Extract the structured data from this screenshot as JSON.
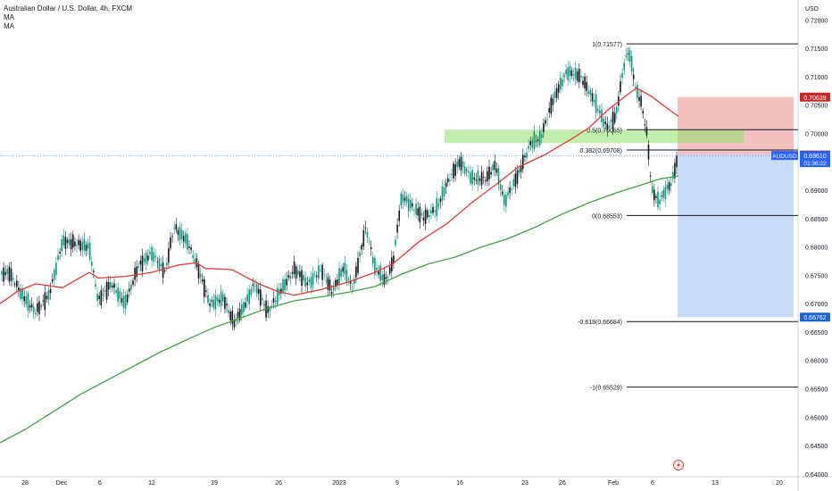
{
  "header": {
    "title": "Australian Dollar / U.S. Dollar, 4h, FXCM",
    "indicator_1": "MA",
    "indicator_2": "MA"
  },
  "chart_data": {
    "type": "candlestick",
    "symbol": "AUDUSD",
    "currency_label": "USD",
    "ylim": [
      0.6395,
      0.7235
    ],
    "y_ticks": [
      "0.72000",
      "0.71500",
      "0.71000",
      "0.70500",
      "0.70000",
      "0.69500",
      "0.69000",
      "0.68500",
      "0.68000",
      "0.67500",
      "0.67000",
      "0.66500",
      "0.66000",
      "0.65500",
      "0.65000",
      "0.64500",
      "0.64000"
    ],
    "x_ticks": [
      "28",
      "Dec",
      "6",
      "12",
      "19",
      "26",
      "2023",
      "9",
      "16",
      "23",
      "26",
      "Feb",
      "6",
      "13",
      "20"
    ],
    "fib_levels": [
      {
        "label": "1(0.71577)",
        "price": 0.71577
      },
      {
        "label": "0.5(0.70065)",
        "price": 0.70065
      },
      {
        "label": "0.382(0.69708)",
        "price": 0.69708
      },
      {
        "label": "0(0.68553)",
        "price": 0.68553
      },
      {
        "label": "-0.618(0.66684)",
        "price": 0.66684
      },
      {
        "label": "-1(0.65529)",
        "price": 0.65529
      }
    ],
    "position": {
      "stop": "0.70639",
      "entry": "0.69619",
      "target": "0.66762"
    },
    "last_price": {
      "symbol": "AUDUSD",
      "price": "0.69610",
      "countdown": "01:36:22",
      "value": 0.6961
    },
    "colors": {
      "up": "#089981",
      "down": "#131722",
      "ma_fast": "#e53935",
      "ma_slow": "#43a047",
      "stop_zone": "#e57373",
      "target_zone": "#90b8f8",
      "sr_zone": "#8ee06a",
      "last_price": "#2962ff"
    },
    "ma_fast": [
      [
        0,
        0.67
      ],
      [
        20,
        0.6722
      ],
      [
        40,
        0.6735
      ],
      [
        70,
        0.6728
      ],
      [
        100,
        0.6755
      ],
      [
        110,
        0.6745
      ],
      [
        140,
        0.6748
      ],
      [
        170,
        0.6755
      ],
      [
        200,
        0.6768
      ],
      [
        220,
        0.6772
      ],
      [
        230,
        0.6762
      ],
      [
        260,
        0.676
      ],
      [
        290,
        0.6735
      ],
      [
        310,
        0.6722
      ],
      [
        330,
        0.6715
      ],
      [
        360,
        0.6725
      ],
      [
        390,
        0.6738
      ],
      [
        420,
        0.6755
      ],
      [
        440,
        0.677
      ],
      [
        470,
        0.681
      ],
      [
        500,
        0.684
      ],
      [
        530,
        0.688
      ],
      [
        560,
        0.6915
      ],
      [
        580,
        0.694
      ],
      [
        610,
        0.6962
      ],
      [
        640,
        0.699
      ],
      [
        660,
        0.701
      ],
      [
        680,
        0.704
      ],
      [
        700,
        0.7065
      ],
      [
        713,
        0.708
      ],
      [
        730,
        0.7065
      ],
      [
        745,
        0.7047
      ],
      [
        760,
        0.703
      ]
    ],
    "ma_slow": [
      [
        0,
        0.6455
      ],
      [
        30,
        0.648
      ],
      [
        60,
        0.651
      ],
      [
        90,
        0.654
      ],
      [
        120,
        0.6565
      ],
      [
        150,
        0.659
      ],
      [
        180,
        0.6615
      ],
      [
        210,
        0.6637
      ],
      [
        240,
        0.6658
      ],
      [
        270,
        0.6675
      ],
      [
        300,
        0.6692
      ],
      [
        330,
        0.6705
      ],
      [
        360,
        0.6712
      ],
      [
        390,
        0.672
      ],
      [
        420,
        0.673
      ],
      [
        450,
        0.6752
      ],
      [
        480,
        0.677
      ],
      [
        510,
        0.6782
      ],
      [
        540,
        0.68
      ],
      [
        570,
        0.6815
      ],
      [
        600,
        0.6835
      ],
      [
        630,
        0.6858
      ],
      [
        660,
        0.6878
      ],
      [
        690,
        0.6895
      ],
      [
        720,
        0.691
      ],
      [
        740,
        0.692
      ],
      [
        760,
        0.6925
      ]
    ],
    "price_path": [
      [
        0,
        0.675
      ],
      [
        10,
        0.6755
      ],
      [
        25,
        0.6715
      ],
      [
        40,
        0.6685
      ],
      [
        55,
        0.6715
      ],
      [
        70,
        0.681
      ],
      [
        85,
        0.6805
      ],
      [
        100,
        0.68
      ],
      [
        110,
        0.6705
      ],
      [
        125,
        0.6735
      ],
      [
        140,
        0.67
      ],
      [
        155,
        0.6765
      ],
      [
        170,
        0.679
      ],
      [
        185,
        0.6755
      ],
      [
        195,
        0.6835
      ],
      [
        210,
        0.681
      ],
      [
        220,
        0.677
      ],
      [
        235,
        0.67
      ],
      [
        250,
        0.671
      ],
      [
        262,
        0.6665
      ],
      [
        275,
        0.67
      ],
      [
        285,
        0.6735
      ],
      [
        300,
        0.6685
      ],
      [
        315,
        0.6725
      ],
      [
        330,
        0.676
      ],
      [
        345,
        0.6735
      ],
      [
        360,
        0.676
      ],
      [
        372,
        0.672
      ],
      [
        385,
        0.6765
      ],
      [
        395,
        0.6725
      ],
      [
        410,
        0.6835
      ],
      [
        420,
        0.6765
      ],
      [
        432,
        0.674
      ],
      [
        440,
        0.677
      ],
      [
        450,
        0.689
      ],
      [
        460,
        0.6875
      ],
      [
        475,
        0.685
      ],
      [
        490,
        0.687
      ],
      [
        500,
        0.691
      ],
      [
        515,
        0.695
      ],
      [
        530,
        0.692
      ],
      [
        545,
        0.692
      ],
      [
        555,
        0.6945
      ],
      [
        565,
        0.688
      ],
      [
        580,
        0.6925
      ],
      [
        595,
        0.6985
      ],
      [
        605,
        0.699
      ],
      [
        620,
        0.706
      ],
      [
        635,
        0.711
      ],
      [
        650,
        0.71
      ],
      [
        665,
        0.706
      ],
      [
        680,
        0.701
      ],
      [
        690,
        0.703
      ],
      [
        700,
        0.713
      ],
      [
        705,
        0.7145
      ],
      [
        712,
        0.708
      ],
      [
        718,
        0.7055
      ],
      [
        725,
        0.6995
      ],
      [
        730,
        0.69
      ],
      [
        738,
        0.688
      ],
      [
        745,
        0.6898
      ],
      [
        752,
        0.6912
      ],
      [
        760,
        0.6961
      ]
    ],
    "candle_x_range": [
      2,
      760
    ]
  }
}
